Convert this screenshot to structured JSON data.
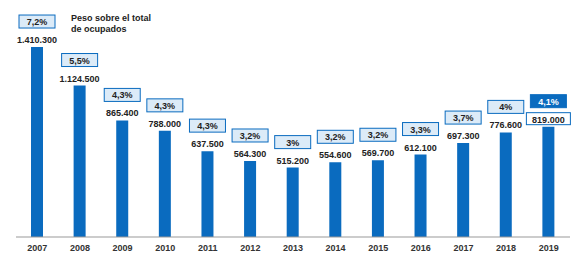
{
  "chart_data": {
    "type": "bar",
    "categories": [
      "2007",
      "2008",
      "2009",
      "2010",
      "2011",
      "2012",
      "2013",
      "2014",
      "2015",
      "2016",
      "2017",
      "2018",
      "2019"
    ],
    "values": [
      1410300,
      1124500,
      865400,
      788000,
      637500,
      564300,
      515200,
      554600,
      569700,
      612100,
      697300,
      776600,
      819000
    ],
    "value_labels": [
      "1.410.300",
      "1.124.500",
      "865.400",
      "788.000",
      "637.500",
      "564.300",
      "515.200",
      "554.600",
      "569.700",
      "612.100",
      "697.300",
      "776.600",
      "819.000"
    ],
    "shares": [
      7.2,
      5.5,
      4.3,
      4.3,
      4.3,
      3.2,
      3,
      3.2,
      3.2,
      3.3,
      3.7,
      4,
      4.1
    ],
    "share_labels": [
      "7,2%",
      "5,5%",
      "4,3%",
      "4,3%",
      "4,3%",
      "3,2%",
      "3%",
      "3,2%",
      "3,2%",
      "3,3%",
      "3,7%",
      "4%",
      "4,1%"
    ],
    "annotations": [
      "Peso sobre el total de ocupados"
    ],
    "color": "#0a6bbf",
    "ylim": [
      0,
      1700000
    ],
    "data_labels": true,
    "tick_labels": "x",
    "grid": false
  }
}
